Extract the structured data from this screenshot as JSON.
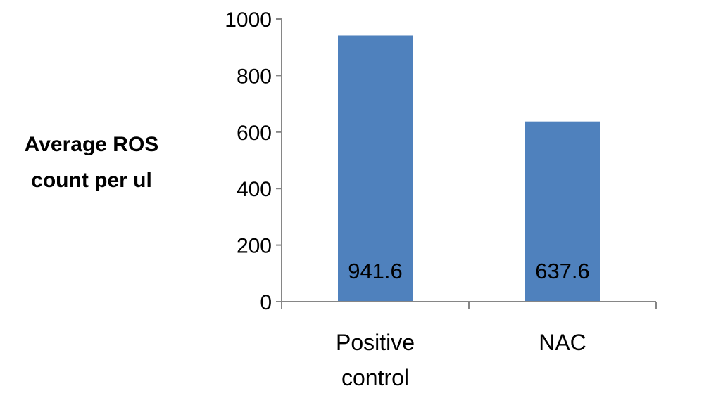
{
  "chart_data": {
    "type": "bar",
    "title": "",
    "xlabel": "",
    "ylabel_lines": [
      "Average ROS",
      "count per ul"
    ],
    "categories": [
      [
        "Positive",
        "control"
      ],
      [
        "NAC"
      ]
    ],
    "values": [
      941.6,
      637.6
    ],
    "data_labels": [
      "941.6",
      "637.6"
    ],
    "ylim": [
      0,
      1000
    ],
    "yticks": [
      0,
      200,
      400,
      600,
      800,
      1000
    ],
    "ytick_labels": [
      "0",
      "200",
      "400",
      "600",
      "800",
      "1000"
    ],
    "bar_color": "#4f81bd",
    "axis_color": "#868686",
    "grid": false,
    "legend": "none"
  }
}
